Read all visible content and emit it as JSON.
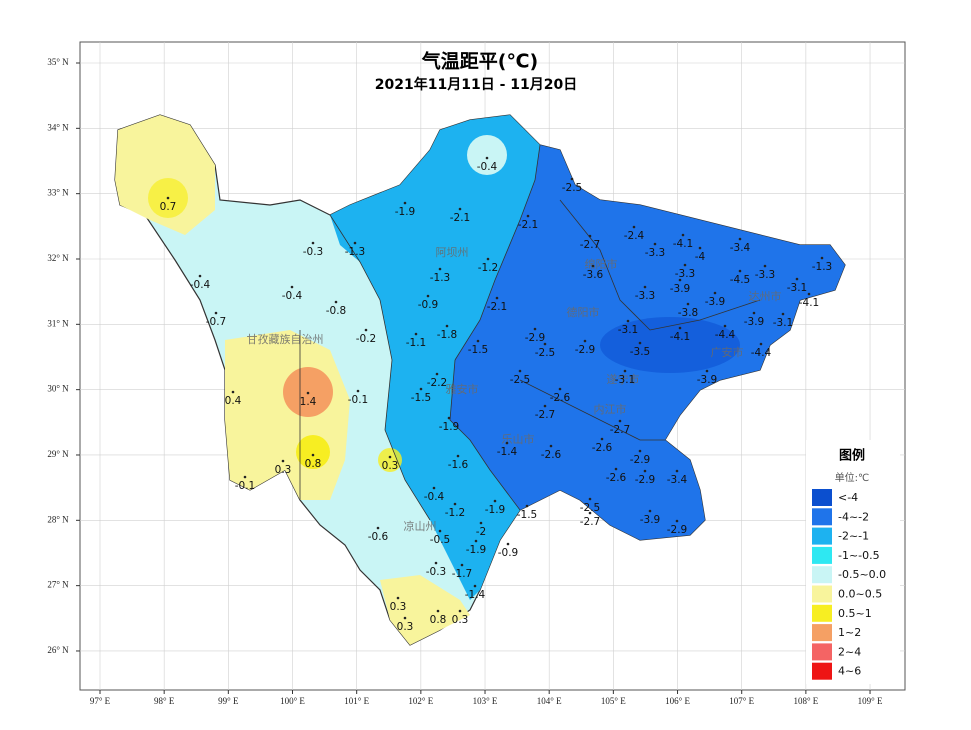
{
  "map": {
    "title": "气温距平(℃)",
    "subtitle": "2021年11月11日 - 11月20日",
    "lat_ticks": [
      {
        "value": 35,
        "label": "35° N"
      },
      {
        "value": 34,
        "label": "34° N"
      },
      {
        "value": 33,
        "label": "33° N"
      },
      {
        "value": 32,
        "label": "32° N"
      },
      {
        "value": 31,
        "label": "31° N"
      },
      {
        "value": 30,
        "label": "30° N"
      },
      {
        "value": 29,
        "label": "29° N"
      },
      {
        "value": 28,
        "label": "28° N"
      },
      {
        "value": 27,
        "label": "27° N"
      },
      {
        "value": 26,
        "label": "26° N"
      }
    ],
    "lon_ticks": [
      {
        "value": 97,
        "label": "97° E"
      },
      {
        "value": 98,
        "label": "98° E"
      },
      {
        "value": 99,
        "label": "99° E"
      },
      {
        "value": 100,
        "label": "100° E"
      },
      {
        "value": 101,
        "label": "101° E"
      },
      {
        "value": 102,
        "label": "102° E"
      },
      {
        "value": 103,
        "label": "103° E"
      },
      {
        "value": 104,
        "label": "104° E"
      },
      {
        "value": 105,
        "label": "105° E"
      },
      {
        "value": 106,
        "label": "106° E"
      },
      {
        "value": 107,
        "label": "107° E"
      },
      {
        "value": 108,
        "label": "108° E"
      },
      {
        "value": 109,
        "label": "109° E"
      }
    ],
    "regions": [
      "甘孜藏族自治州",
      "阿坝州",
      "凉山州",
      "雅安市",
      "乐山市",
      "绵阳市",
      "德阳市",
      "遂宁市",
      "内江市",
      "达州市",
      "广安市"
    ],
    "stations": [
      0.7,
      -0.4,
      -1.9,
      -2.1,
      -2.1,
      -2.5,
      -0.3,
      -1.3,
      -1.3,
      -1.2,
      -0.4,
      -0.4,
      -0.9,
      -0.8,
      -2.1,
      -0.7,
      -0.2,
      -1.1,
      -1.8,
      -1.5,
      1.4,
      -0.1,
      0.4,
      -2.2,
      -1.5,
      -1.9,
      0.8,
      0.3,
      0.3,
      -0.1,
      -1.6,
      -1.4,
      -0.4,
      -1.2,
      -1.9,
      -1.5,
      -0.6,
      -0.5,
      -2,
      -1.9,
      -0.9,
      -0.3,
      -1.7,
      -1.4,
      0.3,
      0.3,
      0.8,
      0.3,
      -2.7,
      -2.4,
      -3.3,
      -4.1,
      -3.4,
      -4,
      -3.3,
      -3.3,
      -4.5,
      -3.1,
      -4.1,
      -1.3,
      -3.6,
      -3.3,
      -3.9,
      -3.9,
      -3.8,
      -3.1,
      -3.9,
      -2.9,
      -2.5,
      -2.9,
      -3.1,
      -4.1,
      -3.5,
      -4.4,
      -4.4,
      -3.9,
      -2.5,
      -3.1,
      -2.7,
      -2.6,
      -2.6,
      -2.7,
      -2.9,
      -2.6,
      -2.9,
      -3.4,
      -3.9,
      -2.9,
      -2.5,
      -2.7,
      -2.6
    ],
    "legend": {
      "title": "图例",
      "unit": "单位:℃",
      "items": [
        {
          "label": "<-4",
          "color": "#0b4fcf"
        },
        {
          "label": "-4~-2",
          "color": "#1f74ea"
        },
        {
          "label": "-2~-1",
          "color": "#1db2f0"
        },
        {
          "label": "-1~-0.5",
          "color": "#2ee8f2"
        },
        {
          "label": "-0.5~0.0",
          "color": "#c9f5f5"
        },
        {
          "label": "0.0~0.5",
          "color": "#f8f49c"
        },
        {
          "label": "0.5~1",
          "color": "#f7ee22"
        },
        {
          "label": "1~2",
          "color": "#f5a064"
        },
        {
          "label": "2~4",
          "color": "#f46464"
        },
        {
          "label": "4~6",
          "color": "#ee1515"
        }
      ]
    }
  }
}
